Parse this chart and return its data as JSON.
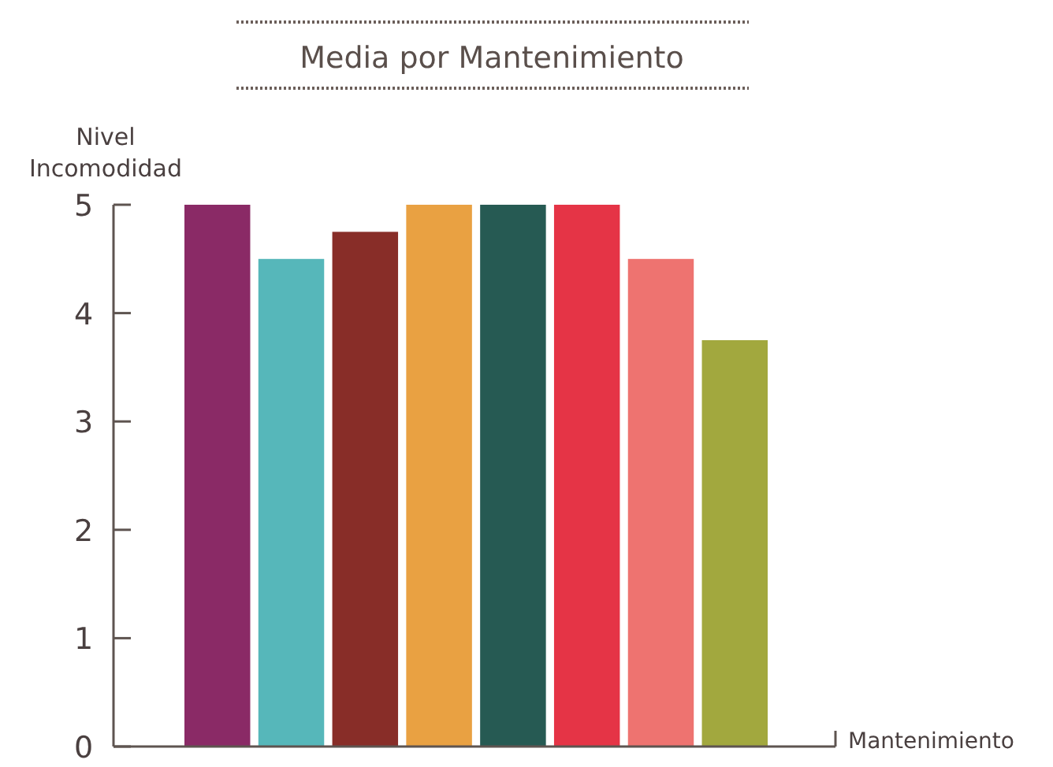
{
  "chart_data": {
    "type": "bar",
    "title": "Media por Mantenimiento",
    "ylabel": "Nivel Incomodidad",
    "xlabel": "Mantenimiento",
    "categories": [
      null,
      null,
      null,
      null,
      null,
      null,
      null,
      null
    ],
    "values": [
      5,
      4.5,
      4.75,
      5,
      5,
      5,
      4.5,
      3.75
    ],
    "colors": [
      "#8a2a66",
      "#56b7ba",
      "#882d28",
      "#e9a142",
      "#265a53",
      "#e53446",
      "#ee7370",
      "#a2a83e"
    ],
    "ylim": [
      0,
      5
    ],
    "yticks": [
      0,
      1,
      2,
      3,
      4,
      5
    ],
    "grid": false
  }
}
